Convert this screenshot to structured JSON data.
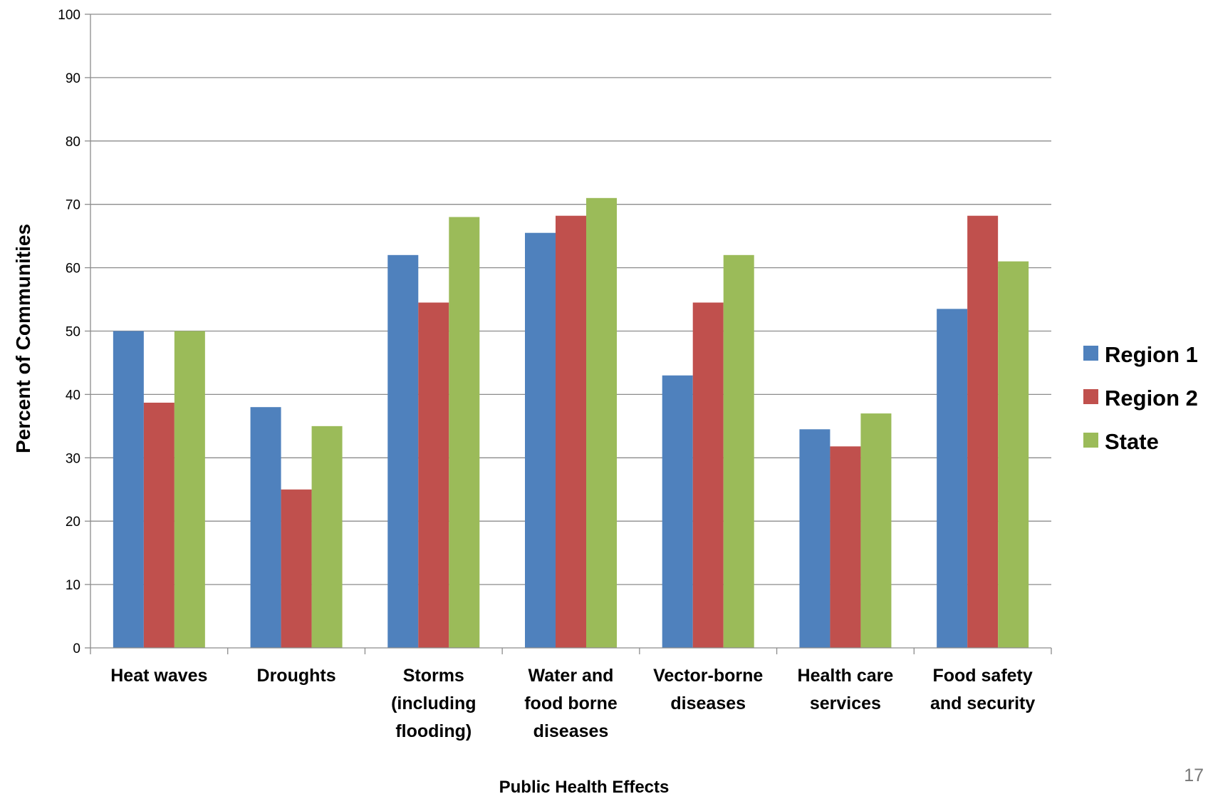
{
  "chart_data": {
    "type": "bar",
    "title": "",
    "xlabel": "Public Health Effects",
    "ylabel": "Percent of Communities",
    "ylim": [
      0,
      100
    ],
    "yticks": [
      0,
      10,
      20,
      30,
      40,
      50,
      60,
      70,
      80,
      90,
      100
    ],
    "grid": true,
    "legend_position": "right",
    "categories": [
      [
        "Heat waves"
      ],
      [
        "Droughts"
      ],
      [
        "Storms",
        "(including",
        "flooding)"
      ],
      [
        "Water and",
        "food borne",
        "diseases"
      ],
      [
        "Vector-borne",
        "diseases"
      ],
      [
        "Health care",
        "services"
      ],
      [
        "Food safety",
        "and security"
      ]
    ],
    "series": [
      {
        "name": "Region 1",
        "color": "#4F81BD",
        "values": [
          50,
          38,
          62,
          65.5,
          43,
          34.5,
          53.5
        ]
      },
      {
        "name": "Region 2",
        "color": "#C0504D",
        "values": [
          38.7,
          25,
          54.5,
          68.2,
          54.5,
          31.8,
          68.2
        ]
      },
      {
        "name": "State",
        "color": "#9BBB59",
        "values": [
          50,
          35,
          68,
          71,
          62,
          37,
          61
        ]
      }
    ]
  },
  "page_number": "17"
}
